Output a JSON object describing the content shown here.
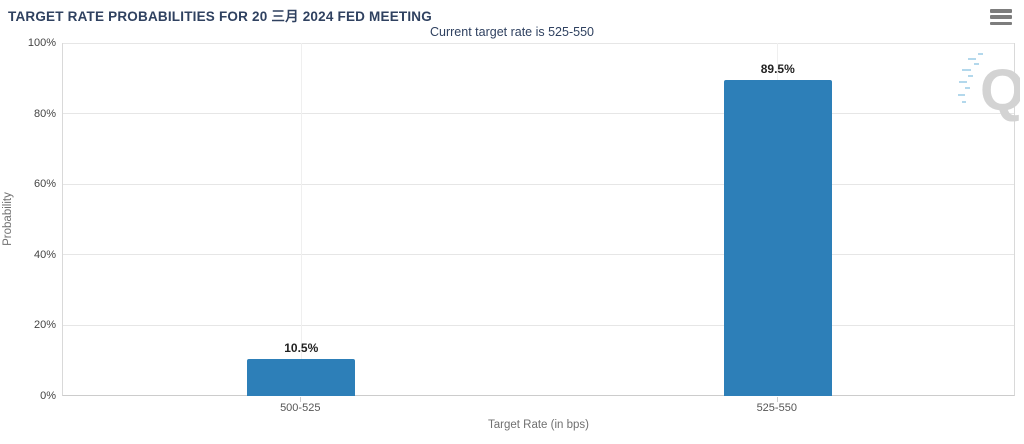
{
  "header": {
    "menu_icon": "hamburger-icon"
  },
  "colors": {
    "bar": "#2d7fb8",
    "title_text": "#2f4160",
    "grid": "#e6e6e6",
    "axis_line": "#cccccc",
    "data_label": "#222222",
    "axis_text": "#707070",
    "watermark": "#d3d3d3",
    "watermark_accent": "#b3d8ec"
  },
  "chart_data": {
    "type": "bar",
    "title": "TARGET RATE PROBABILITIES FOR 20 三月 2024 FED MEETING",
    "subtitle": "Current target rate is 525-550",
    "categories": [
      "500-525",
      "525-550"
    ],
    "values": [
      10.5,
      89.5
    ],
    "value_labels": [
      "10.5%",
      "89.5%"
    ],
    "xlabel": "Target Rate (in bps)",
    "ylabel": "Probability",
    "ylim": [
      0,
      100
    ],
    "yticks": [
      0,
      20,
      40,
      60,
      80,
      100
    ],
    "ytick_labels": [
      "0%",
      "20%",
      "40%",
      "60%",
      "80%",
      "100%"
    ],
    "grid": true,
    "legend": "none",
    "watermark": "Q"
  }
}
